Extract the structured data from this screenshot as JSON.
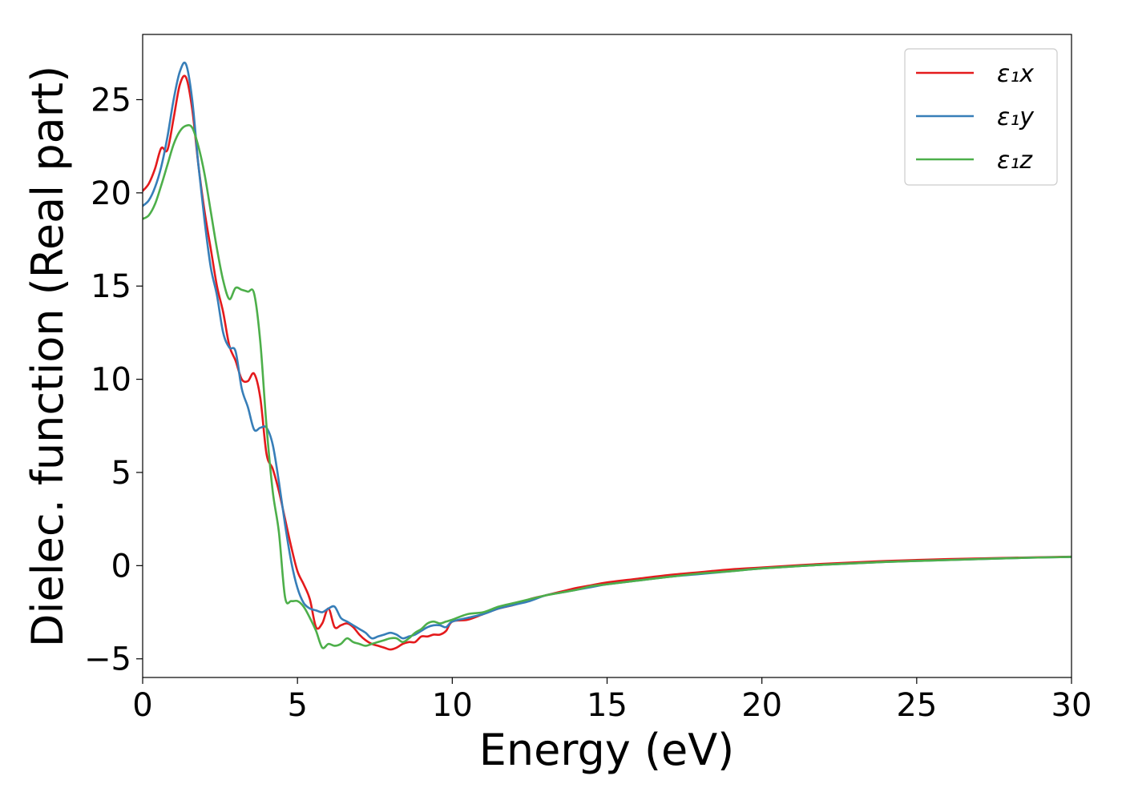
{
  "chart_data": {
    "type": "line",
    "title": "",
    "xlabel": "Energy (eV)",
    "ylabel": "Dielec. function (Real part)",
    "xlim": [
      0,
      30
    ],
    "ylim": [
      -6,
      28.5
    ],
    "xticks": [
      0,
      5,
      10,
      15,
      20,
      25,
      30
    ],
    "xtick_labels": [
      "0",
      "5",
      "10",
      "15",
      "20",
      "25",
      "30"
    ],
    "yticks": [
      -5,
      0,
      5,
      10,
      15,
      20,
      25
    ],
    "ytick_labels": [
      "−5",
      "0",
      "5",
      "10",
      "15",
      "20",
      "25"
    ],
    "grid": false,
    "legend_position": "top-right",
    "series": [
      {
        "name": "ε₁x",
        "color": "#e41a1c",
        "x": [
          0,
          0.2,
          0.4,
          0.6,
          0.8,
          1.0,
          1.2,
          1.4,
          1.6,
          1.8,
          2.0,
          2.2,
          2.4,
          2.6,
          2.8,
          3.0,
          3.2,
          3.4,
          3.6,
          3.8,
          4.0,
          4.2,
          4.4,
          4.6,
          4.8,
          5.0,
          5.2,
          5.4,
          5.6,
          5.8,
          6.0,
          6.2,
          6.4,
          6.6,
          6.8,
          7.0,
          7.2,
          7.4,
          7.6,
          7.8,
          8.0,
          8.2,
          8.4,
          8.6,
          8.8,
          9.0,
          9.2,
          9.4,
          9.6,
          9.8,
          10.0,
          10.5,
          11.0,
          11.5,
          12.0,
          12.5,
          13.0,
          13.5,
          14.0,
          14.5,
          15.0,
          16.0,
          17.0,
          18.0,
          19.0,
          20.0,
          22.0,
          24.0,
          26.0,
          28.0,
          30.0
        ],
        "values": [
          20.1,
          20.5,
          21.3,
          22.4,
          22.3,
          24.0,
          25.8,
          26.2,
          24.5,
          21.5,
          19.0,
          17.0,
          15.0,
          13.6,
          11.8,
          11.0,
          10.0,
          9.9,
          10.3,
          9.0,
          6.0,
          5.2,
          4.0,
          2.5,
          1.0,
          -0.3,
          -1.0,
          -1.8,
          -3.3,
          -3.1,
          -2.3,
          -3.3,
          -3.2,
          -3.1,
          -3.3,
          -3.7,
          -4.0,
          -4.2,
          -4.3,
          -4.4,
          -4.5,
          -4.4,
          -4.2,
          -4.1,
          -4.1,
          -3.8,
          -3.8,
          -3.7,
          -3.7,
          -3.5,
          -3.0,
          -2.9,
          -2.6,
          -2.3,
          -2.1,
          -1.8,
          -1.6,
          -1.4,
          -1.2,
          -1.05,
          -0.9,
          -0.7,
          -0.5,
          -0.35,
          -0.2,
          -0.1,
          0.1,
          0.25,
          0.35,
          0.42,
          0.48
        ]
      },
      {
        "name": "ε₁y",
        "color": "#377eb8",
        "x": [
          0,
          0.2,
          0.4,
          0.6,
          0.8,
          1.0,
          1.2,
          1.4,
          1.6,
          1.8,
          2.0,
          2.2,
          2.4,
          2.6,
          2.8,
          3.0,
          3.2,
          3.4,
          3.6,
          3.8,
          4.0,
          4.2,
          4.4,
          4.6,
          4.8,
          5.0,
          5.2,
          5.4,
          5.6,
          5.8,
          6.0,
          6.2,
          6.4,
          6.6,
          6.8,
          7.0,
          7.2,
          7.4,
          7.6,
          7.8,
          8.0,
          8.2,
          8.4,
          8.6,
          8.8,
          9.0,
          9.2,
          9.4,
          9.6,
          9.8,
          10.0,
          10.5,
          11.0,
          11.5,
          12.0,
          12.5,
          13.0,
          13.5,
          14.0,
          14.5,
          15.0,
          16.0,
          17.0,
          18.0,
          19.0,
          20.0,
          22.0,
          24.0,
          26.0,
          28.0,
          30.0
        ],
        "values": [
          19.3,
          19.6,
          20.3,
          21.4,
          23.0,
          25.0,
          26.5,
          26.9,
          25.0,
          21.5,
          18.5,
          16.0,
          14.5,
          12.5,
          11.7,
          11.5,
          9.5,
          8.5,
          7.3,
          7.4,
          7.4,
          6.5,
          4.5,
          2.2,
          0.2,
          -1.2,
          -2.0,
          -2.3,
          -2.4,
          -2.5,
          -2.3,
          -2.2,
          -2.8,
          -3.0,
          -3.2,
          -3.4,
          -3.6,
          -3.9,
          -3.8,
          -3.7,
          -3.6,
          -3.7,
          -3.9,
          -3.8,
          -3.7,
          -3.5,
          -3.3,
          -3.2,
          -3.2,
          -3.3,
          -3.0,
          -2.8,
          -2.6,
          -2.3,
          -2.1,
          -1.9,
          -1.6,
          -1.45,
          -1.3,
          -1.15,
          -1.0,
          -0.8,
          -0.6,
          -0.45,
          -0.3,
          -0.15,
          0.05,
          0.2,
          0.3,
          0.4,
          0.47
        ]
      },
      {
        "name": "ε₁z",
        "color": "#4daf4a",
        "x": [
          0,
          0.2,
          0.4,
          0.6,
          0.8,
          1.0,
          1.2,
          1.4,
          1.6,
          1.8,
          2.0,
          2.2,
          2.4,
          2.6,
          2.8,
          3.0,
          3.2,
          3.4,
          3.6,
          3.8,
          4.0,
          4.2,
          4.4,
          4.6,
          4.8,
          5.0,
          5.2,
          5.4,
          5.6,
          5.8,
          6.0,
          6.2,
          6.4,
          6.6,
          6.8,
          7.0,
          7.2,
          7.4,
          7.6,
          7.8,
          8.0,
          8.2,
          8.4,
          8.6,
          8.8,
          9.0,
          9.2,
          9.4,
          9.6,
          9.8,
          10.0,
          10.5,
          11.0,
          11.5,
          12.0,
          12.5,
          13.0,
          13.5,
          14.0,
          14.5,
          15.0,
          16.0,
          17.0,
          18.0,
          19.0,
          20.0,
          22.0,
          24.0,
          26.0,
          28.0,
          30.0
        ],
        "values": [
          18.6,
          18.8,
          19.4,
          20.4,
          21.5,
          22.6,
          23.3,
          23.6,
          23.5,
          22.5,
          21.0,
          19.0,
          17.0,
          15.3,
          14.3,
          14.9,
          14.8,
          14.7,
          14.6,
          12.0,
          7.5,
          4.0,
          1.8,
          -1.7,
          -1.9,
          -1.9,
          -2.2,
          -2.8,
          -3.5,
          -4.4,
          -4.2,
          -4.3,
          -4.2,
          -3.9,
          -4.1,
          -4.2,
          -4.3,
          -4.2,
          -4.1,
          -4.0,
          -3.9,
          -3.9,
          -4.1,
          -3.9,
          -3.6,
          -3.4,
          -3.1,
          -3.0,
          -3.1,
          -3.0,
          -2.9,
          -2.6,
          -2.5,
          -2.2,
          -2.0,
          -1.8,
          -1.6,
          -1.45,
          -1.3,
          -1.1,
          -1.0,
          -0.8,
          -0.6,
          -0.42,
          -0.3,
          -0.15,
          0.05,
          0.2,
          0.3,
          0.4,
          0.47
        ]
      }
    ]
  }
}
